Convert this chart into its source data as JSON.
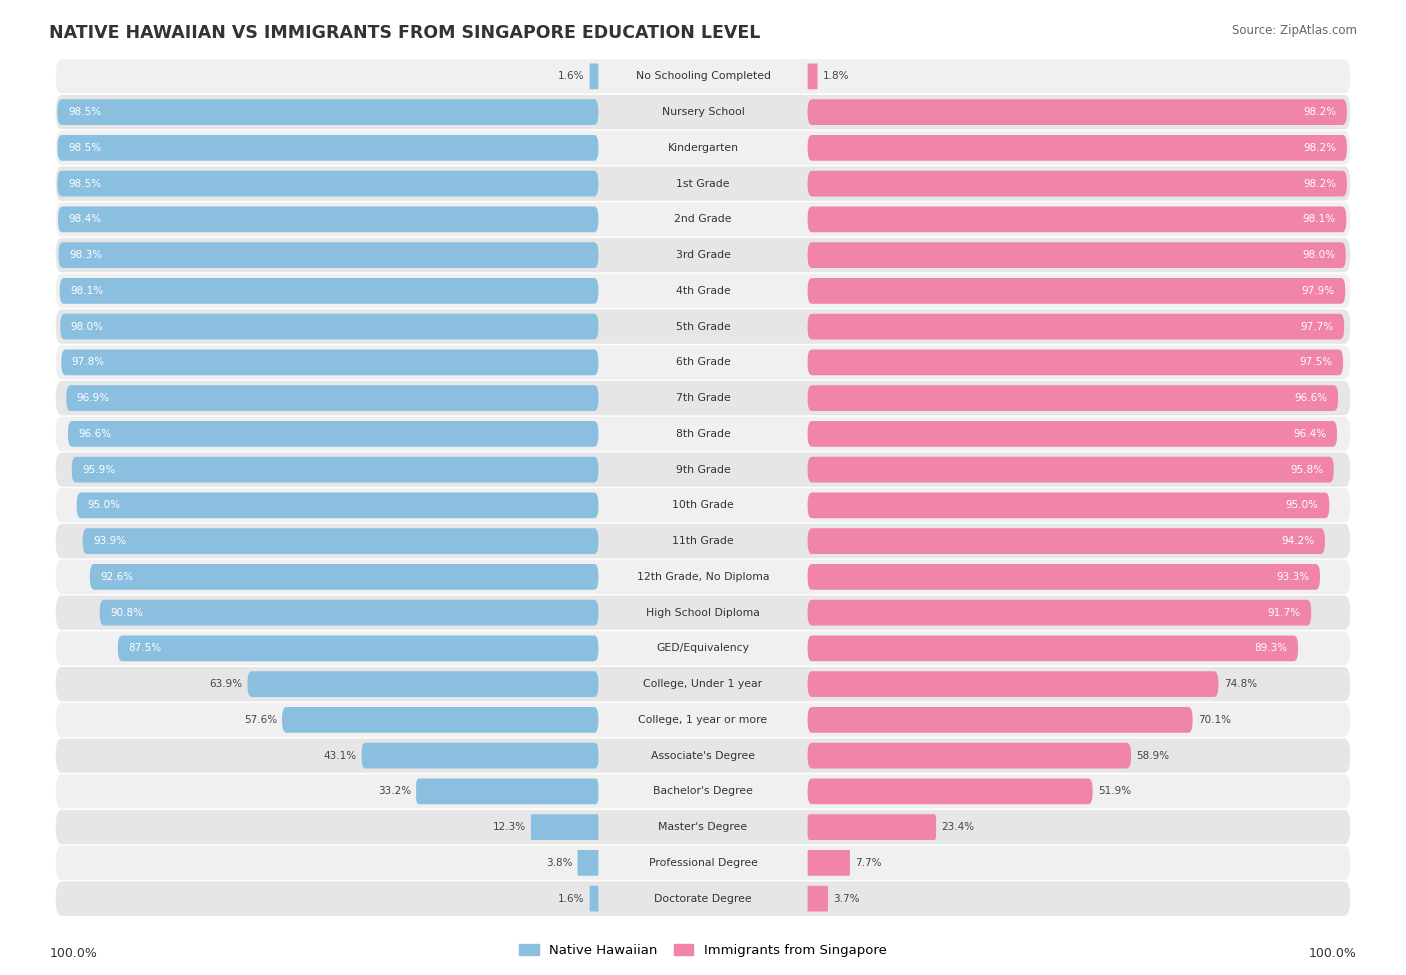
{
  "title": "NATIVE HAWAIIAN VS IMMIGRANTS FROM SINGAPORE EDUCATION LEVEL",
  "source": "Source: ZipAtlas.com",
  "categories": [
    "No Schooling Completed",
    "Nursery School",
    "Kindergarten",
    "1st Grade",
    "2nd Grade",
    "3rd Grade",
    "4th Grade",
    "5th Grade",
    "6th Grade",
    "7th Grade",
    "8th Grade",
    "9th Grade",
    "10th Grade",
    "11th Grade",
    "12th Grade, No Diploma",
    "High School Diploma",
    "GED/Equivalency",
    "College, Under 1 year",
    "College, 1 year or more",
    "Associate's Degree",
    "Bachelor's Degree",
    "Master's Degree",
    "Professional Degree",
    "Doctorate Degree"
  ],
  "native_hawaiian": [
    1.6,
    98.5,
    98.5,
    98.5,
    98.4,
    98.3,
    98.1,
    98.0,
    97.8,
    96.9,
    96.6,
    95.9,
    95.0,
    93.9,
    92.6,
    90.8,
    87.5,
    63.9,
    57.6,
    43.1,
    33.2,
    12.3,
    3.8,
    1.6
  ],
  "singapore": [
    1.8,
    98.2,
    98.2,
    98.2,
    98.1,
    98.0,
    97.9,
    97.7,
    97.5,
    96.6,
    96.4,
    95.8,
    95.0,
    94.2,
    93.3,
    91.7,
    89.3,
    74.8,
    70.1,
    58.9,
    51.9,
    23.4,
    7.7,
    3.7
  ],
  "color_hawaiian": "#8bbfe0",
  "color_singapore": "#f084aa",
  "color_row_bg_even": "#f0f0f0",
  "color_row_bg_odd": "#e6e6e6",
  "legend_hawaiian": "Native Hawaiian",
  "legend_singapore": "Immigrants from Singapore",
  "axis_label_left": "100.0%",
  "axis_label_right": "100.0%",
  "value_color_inside": "white",
  "value_color_outside": "#444444",
  "label_color_center": "#333333",
  "title_color": "#333333",
  "source_color": "#666666"
}
